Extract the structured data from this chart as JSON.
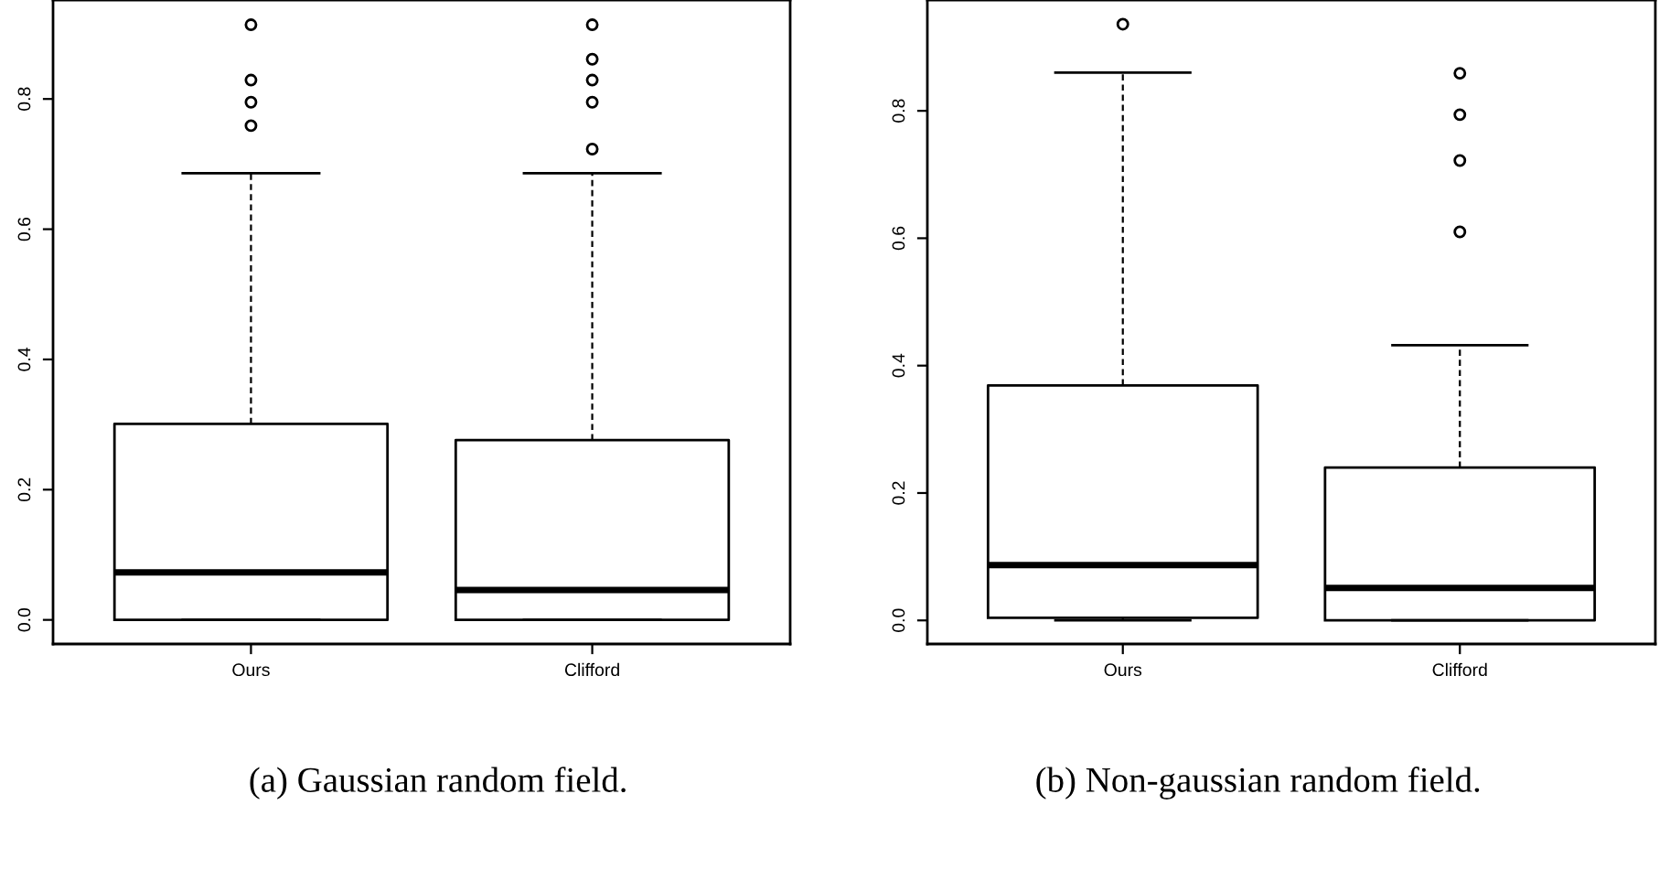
{
  "chart_data": [
    {
      "type": "box",
      "categories": [
        "Ours",
        "Clifford"
      ],
      "ylim": [
        -0.037,
        0.952
      ],
      "yticks": [
        {
          "value": 0,
          "label": "0.0"
        },
        0.2,
        0.4,
        0.6,
        0.8
      ],
      "grid": false,
      "boxes": [
        {
          "low": 0,
          "q1": 0.0,
          "median": 0.073,
          "q3": 0.301,
          "high": 0.686,
          "outliers": [
            0.759,
            0.795,
            0.829,
            0.914
          ]
        },
        {
          "low": 0,
          "q1": 0.0,
          "median": 0.046,
          "q3": 0.276,
          "high": 0.686,
          "outliers": [
            0.723,
            0.795,
            0.829,
            0.861,
            0.914
          ]
        }
      ],
      "annotations": [
        "(a) Gaussian random field."
      ]
    },
    {
      "type": "box",
      "categories": [
        "Ours",
        "Clifford"
      ],
      "ylim": [
        -0.037,
        0.974
      ],
      "yticks": [
        {
          "value": 0,
          "label": "0.0"
        },
        0.2,
        0.4,
        0.6,
        0.8
      ],
      "grid": false,
      "boxes": [
        {
          "low": 0,
          "q1": 0.004,
          "median": 0.087,
          "q3": 0.369,
          "high": 0.86,
          "outliers": [
            0.936
          ]
        },
        {
          "low": 0,
          "q1": 0.0,
          "median": 0.051,
          "q3": 0.24,
          "high": 0.432,
          "outliers": [
            0.61,
            0.722,
            0.794,
            0.859
          ]
        }
      ],
      "annotations": [
        "(b) Non-gaussian random field."
      ]
    }
  ]
}
